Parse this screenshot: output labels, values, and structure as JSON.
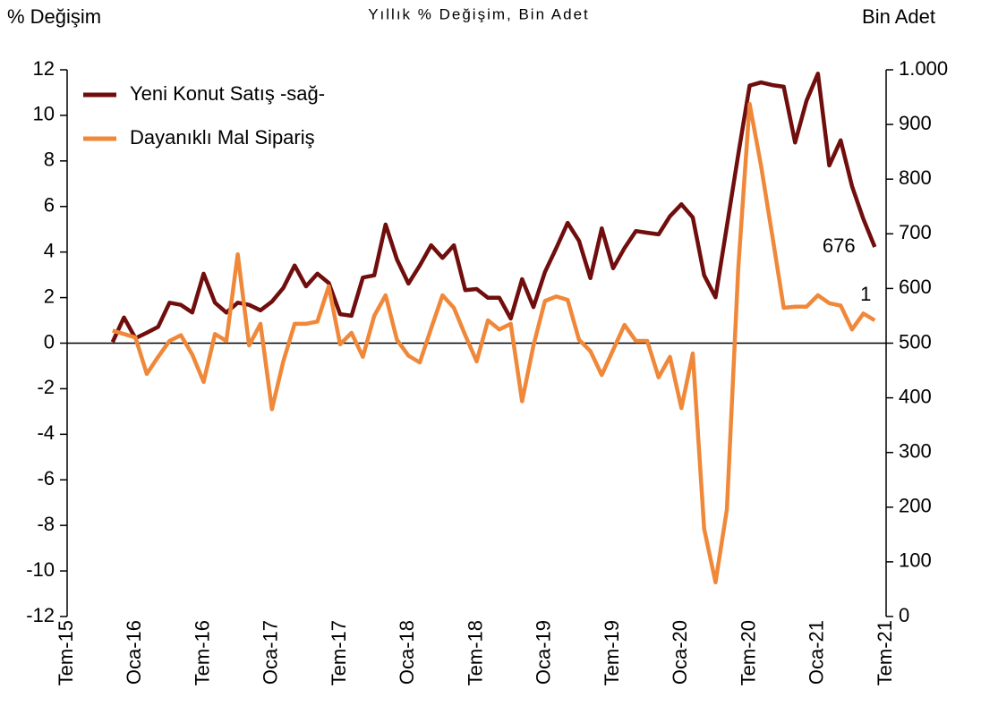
{
  "chart_data": {
    "type": "line",
    "title": "Yıllık % Değişim, Bin Adet",
    "y_label": "% Değişim",
    "y2_label": "Bin Adet",
    "categories": [
      "Tem-15",
      null,
      null,
      null,
      null,
      null,
      "Oca-16",
      null,
      null,
      null,
      null,
      null,
      "Tem-16",
      null,
      null,
      null,
      null,
      null,
      "Oca-17",
      null,
      null,
      null,
      null,
      null,
      "Tem-17",
      null,
      null,
      null,
      null,
      null,
      "Oca-18",
      null,
      null,
      null,
      null,
      null,
      "Tem-18",
      null,
      null,
      null,
      null,
      null,
      "Oca-19",
      null,
      null,
      null,
      null,
      null,
      "Tem-19",
      null,
      null,
      null,
      null,
      null,
      "Oca-20",
      null,
      null,
      null,
      null,
      null,
      "Tem-20",
      null,
      null,
      null,
      null,
      null,
      "Oca-21",
      null,
      null,
      null,
      null,
      null,
      "Tem-21"
    ],
    "series": [
      {
        "name": "Yeni Konut Satış -sağ-",
        "color": "#700d0d",
        "axis": "y2",
        "values": [
          null,
          null,
          null,
          null,
          502,
          547,
          509,
          519,
          530,
          574,
          570,
          556,
          627,
          574,
          556,
          574,
          570,
          560,
          576,
          601,
          642,
          604,
          627,
          610,
          553,
          550,
          620,
          624,
          717,
          653,
          609,
          642,
          679,
          656,
          679,
          597,
          599,
          583,
          583,
          545,
          617,
          566,
          630,
          674,
          720,
          687,
          619,
          710,
          637,
          674,
          705,
          702,
          699,
          732,
          754,
          730,
          624,
          584,
          714,
          845,
          971,
          977,
          972,
          969,
          867,
          943,
          993,
          825,
          871,
          787,
          727,
          676,
          null
        ]
      },
      {
        "name": "Dayanıklı Mal Sipariş",
        "color": "#f0883a",
        "values": [
          null,
          null,
          null,
          null,
          0.55,
          0.4,
          0.25,
          -1.35,
          -0.6,
          0.1,
          0.35,
          -0.5,
          -1.7,
          0.4,
          0.1,
          3.9,
          -0.1,
          0.85,
          -2.9,
          -0.8,
          0.85,
          0.85,
          0.95,
          2.5,
          -0.05,
          0.45,
          -0.6,
          1.2,
          2.1,
          0.15,
          -0.55,
          -0.85,
          0.65,
          2.1,
          1.55,
          0.35,
          -0.8,
          1.0,
          0.6,
          0.85,
          -2.55,
          -0.1,
          1.85,
          2.05,
          1.9,
          0.15,
          -0.35,
          -1.4,
          -0.3,
          0.8,
          0.1,
          0.1,
          -1.5,
          -0.6,
          -2.85,
          -0.45,
          -8.15,
          -10.5,
          -7.3,
          3.3,
          10.5,
          7.8,
          4.7,
          1.55,
          1.6,
          1.6,
          2.1,
          1.75,
          1.65,
          0.6,
          1.3,
          1.0,
          null
        ]
      }
    ],
    "ylim": [
      -12,
      12
    ],
    "yticks": [
      -12,
      -10,
      -8,
      -6,
      -4,
      -2,
      0,
      2,
      4,
      6,
      8,
      10,
      12
    ],
    "y2lim": [
      0,
      1000
    ],
    "y2ticks": [
      0,
      100,
      200,
      300,
      400,
      500,
      600,
      700,
      800,
      900,
      {
        "value": 1000,
        "label": "1.000"
      }
    ],
    "legend": "upper left"
  }
}
